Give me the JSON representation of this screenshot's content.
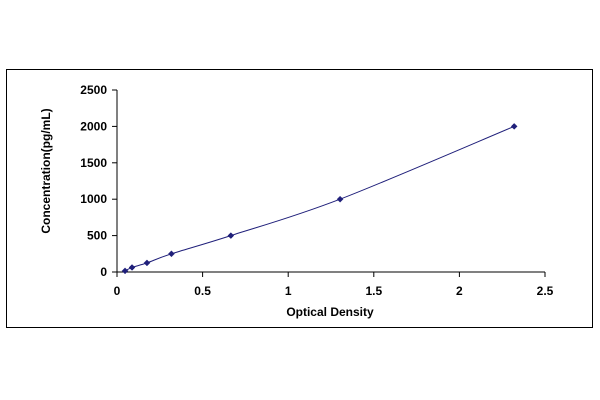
{
  "chart_data": {
    "type": "scatter",
    "title": "",
    "xlabel": "Optical Density",
    "ylabel": "Concentration(pg/mL)",
    "xlim": [
      0,
      2.5
    ],
    "ylim": [
      0,
      2500
    ],
    "x_ticks": [
      "0",
      "0.5",
      "1",
      "1.5",
      "2",
      "2.5"
    ],
    "y_ticks": [
      "0",
      "500",
      "1000",
      "1500",
      "2000",
      "2500"
    ],
    "grid": false,
    "legend": "none",
    "series": [
      {
        "x": [
          0.047,
          0.088,
          0.175,
          0.318,
          0.665,
          1.303,
          2.32
        ],
        "y": [
          15.6,
          62.5,
          125,
          250,
          500,
          1000,
          2000
        ],
        "marker": "diamond",
        "fit_line": true
      }
    ],
    "colors": {
      "marker": "#1f1f7a",
      "line": "#1f1f7a",
      "axis": "#000000"
    }
  }
}
